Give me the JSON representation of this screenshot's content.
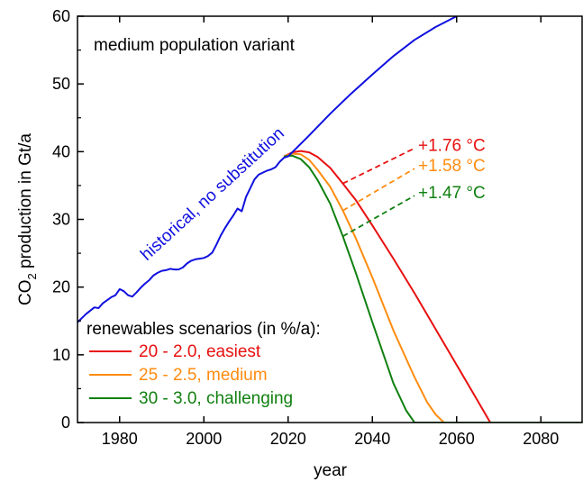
{
  "chart_data": {
    "type": "line",
    "title": "",
    "xlabel": "year",
    "ylabel": {
      "prefix": "CO",
      "sub": "2",
      "suffix": " production in Gt/a"
    },
    "xlim": [
      1970,
      2090
    ],
    "ylim": [
      0,
      60
    ],
    "x_ticks": [
      1980,
      2000,
      2020,
      2040,
      2060,
      2080
    ],
    "y_ticks": [
      0,
      10,
      20,
      30,
      40,
      50,
      60
    ],
    "grid": false,
    "colors": {
      "historical": "#1010e0",
      "easiest": "#e81010",
      "medium": "#ff8c10",
      "challenging": "#108010"
    },
    "annotations": {
      "variant": "medium population variant",
      "historical_label": "historical, no substitution"
    },
    "legend": {
      "title": "renewables scenarios (in %/a):",
      "placement": "bottom-left",
      "entries": [
        "20 - 2.0, easiest",
        "25 - 2.5, medium",
        "30 - 3.0, challenging"
      ]
    },
    "temperature_labels": [
      {
        "series": "easiest",
        "text": "+1.76 °C",
        "from": [
          2033,
          35.3
        ],
        "to": [
          2050,
          40.5
        ]
      },
      {
        "series": "medium",
        "text": "+1.58 °C",
        "from": [
          2033,
          31.3
        ],
        "to": [
          2050,
          37.5
        ]
      },
      {
        "series": "challenging",
        "text": "+1.47 °C",
        "from": [
          2033,
          27.5
        ],
        "to": [
          2050,
          33.5
        ]
      }
    ],
    "series": [
      {
        "key": "historical",
        "x": [
          1970,
          1972,
          1974,
          1975,
          1976,
          1978,
          1979,
          1980,
          1981,
          1982,
          1983,
          1984,
          1985,
          1986,
          1987,
          1988,
          1989,
          1990,
          1991,
          1992,
          1993,
          1994,
          1995,
          1996,
          1997,
          1998,
          1999,
          2000,
          2001,
          2002,
          2003,
          2004,
          2005,
          2006,
          2007,
          2008,
          2009,
          2010,
          2011,
          2012,
          2013,
          2014,
          2015,
          2016,
          2017,
          2018,
          2019,
          2020,
          2025,
          2030,
          2035,
          2040,
          2045,
          2050,
          2055,
          2060,
          2063
        ],
        "y": [
          14.8,
          16,
          17,
          16.9,
          17.6,
          18.5,
          18.8,
          19.7,
          19.4,
          18.8,
          18.6,
          19.2,
          19.9,
          20.5,
          21,
          21.7,
          22.1,
          22.4,
          22.5,
          22.7,
          22.6,
          22.6,
          22.9,
          23.5,
          23.9,
          24.1,
          24.2,
          24.3,
          24.6,
          25.1,
          26.3,
          27.6,
          28.7,
          29.7,
          30.6,
          31.6,
          31.2,
          33.3,
          34.6,
          35.9,
          36.6,
          36.9,
          37.2,
          37.4,
          37.7,
          38.5,
          39.1,
          39.3,
          42.4,
          45.6,
          48.6,
          51.4,
          54.1,
          56.5,
          58.4,
          60,
          61.2
        ]
      },
      {
        "key": "easiest",
        "x": [
          2019,
          2021,
          2023,
          2025,
          2027,
          2030,
          2033,
          2036,
          2040,
          2045,
          2050,
          2055,
          2060,
          2065,
          2068,
          2090
        ],
        "y": [
          39.3,
          39.9,
          40.1,
          39.9,
          39.2,
          37.6,
          35.3,
          32.9,
          29.1,
          24.2,
          19.1,
          13.8,
          8.5,
          3.2,
          0,
          0
        ]
      },
      {
        "key": "medium",
        "x": [
          2019,
          2021,
          2023,
          2025,
          2027,
          2030,
          2033,
          2036,
          2040,
          2045,
          2050,
          2053,
          2055,
          2057,
          2090
        ],
        "y": [
          39.3,
          39.7,
          39.6,
          38.8,
          37.3,
          34.8,
          31.3,
          27.3,
          21.4,
          13.6,
          6.7,
          3,
          1.2,
          0,
          0
        ]
      },
      {
        "key": "challenging",
        "x": [
          2019,
          2021,
          2023,
          2025,
          2027,
          2030,
          2033,
          2036,
          2040,
          2045,
          2048,
          2050,
          2090
        ],
        "y": [
          39.3,
          39.4,
          38.9,
          37.7,
          35.8,
          32.3,
          27.5,
          22.2,
          14.8,
          5.8,
          1.8,
          0,
          0
        ]
      }
    ]
  }
}
